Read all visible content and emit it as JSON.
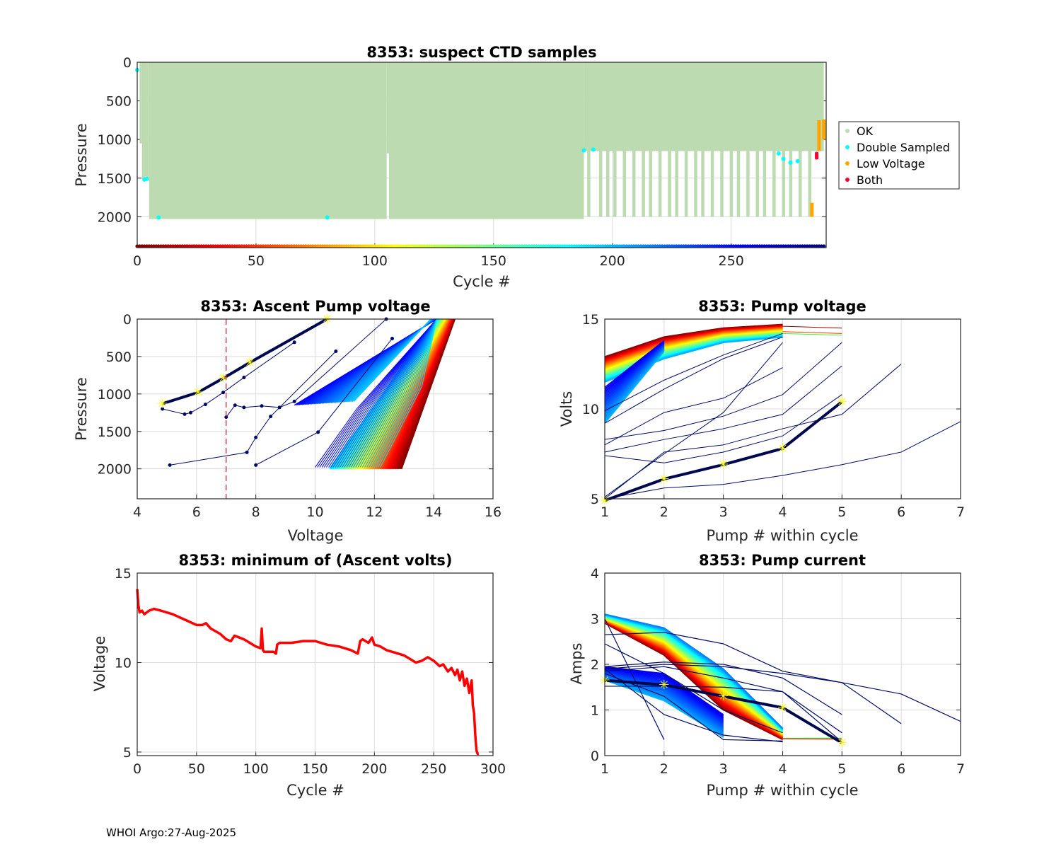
{
  "footer": "WHOI Argo:27-Aug-2025",
  "chart_data": [
    {
      "id": "suspect",
      "type": "scatter",
      "title": "8353: suspect CTD samples",
      "xlabel": "Cycle #",
      "ylabel": "Pressure",
      "xlim": [
        0,
        290
      ],
      "ylim": [
        2400,
        0
      ],
      "xticks": [
        0,
        50,
        100,
        150,
        200,
        250
      ],
      "yticks": [
        0,
        500,
        1000,
        1500,
        2000
      ],
      "grid": true,
      "legend": {
        "placement": "outside-right",
        "entries": [
          {
            "label": "OK",
            "color": "#bcdbb0"
          },
          {
            "label": "Double Sampled",
            "color": "#00ffff"
          },
          {
            "label": "Low Voltage",
            "color": "#ffa500"
          },
          {
            "label": "Both",
            "color": "#ff0033"
          }
        ]
      },
      "ok_profile_depth": [
        {
          "cycles": [
            0,
            1
          ],
          "max_p": 0
        },
        {
          "cycles": [
            1,
            2
          ],
          "max_p": 1050
        },
        {
          "cycles": [
            2,
            5
          ],
          "max_p": 1510
        },
        {
          "cycles": [
            5,
            105
          ],
          "max_p": 2030
        },
        {
          "cycles": [
            105,
            106
          ],
          "max_p": 1180
        },
        {
          "cycles": [
            106,
            188
          ],
          "max_p": 2030
        },
        {
          "cycles": [
            188,
            289
          ],
          "max_p": 1150
        }
      ],
      "deep_profiles_after_188": [
        190,
        195,
        198,
        201,
        205,
        209,
        213,
        216,
        220,
        224,
        227,
        231,
        235,
        238,
        242,
        246,
        250,
        253,
        257,
        261,
        264,
        268,
        272,
        275,
        279,
        283
      ],
      "deep_profile_pressure": 2000,
      "double_sampled": [
        {
          "cycle": 0,
          "p": 100
        },
        {
          "cycle": 3,
          "p": 1520
        },
        {
          "cycle": 4,
          "p": 1510
        },
        {
          "cycle": 9,
          "p": 2010
        },
        {
          "cycle": 80,
          "p": 2010
        },
        {
          "cycle": 188,
          "p": 1140
        },
        {
          "cycle": 192,
          "p": 1130
        },
        {
          "cycle": 270,
          "p": 1180
        },
        {
          "cycle": 272,
          "p": 1250
        },
        {
          "cycle": 275,
          "p": 1300
        },
        {
          "cycle": 278,
          "p": 1280
        }
      ],
      "low_voltage": [
        {
          "cycle": 284,
          "p_range": [
            1820,
            2000
          ]
        },
        {
          "cycle": 287,
          "p_range": [
            750,
            1150
          ]
        },
        {
          "cycle": 289,
          "p_range": [
            740,
            1000
          ]
        }
      ],
      "both": [
        {
          "cycle": 286,
          "p_range": [
            1160,
            1260
          ]
        }
      ],
      "cycle_colorbar_range": [
        0,
        289
      ]
    },
    {
      "id": "ascent",
      "type": "line",
      "title": "8353: Ascent Pump voltage",
      "xlabel": "Voltage",
      "ylabel": "Pressure",
      "xlim": [
        4,
        16
      ],
      "ylim": [
        2400,
        0
      ],
      "xticks": [
        4,
        6,
        8,
        10,
        12,
        14,
        16
      ],
      "yticks": [
        0,
        500,
        1000,
        1500,
        2000
      ],
      "grid": true,
      "threshold_line": {
        "x": 7,
        "color": "#e0102a",
        "style": "dashed"
      },
      "early_cycles_envelope": {
        "voltage_at_2000": [
          12.9,
          10.5
        ],
        "voltage_at_0": [
          14.7,
          14.1
        ]
      },
      "last_cycle_pumps": [
        {
          "v": 4.85,
          "p": 1130
        },
        {
          "v": 6.05,
          "p": 980
        },
        {
          "v": 6.9,
          "p": 790
        },
        {
          "v": 7.8,
          "p": 580
        },
        {
          "v": 10.4,
          "p": 0
        }
      ],
      "sample_late_cycles": [
        [
          [
            4.85,
            1200
          ],
          [
            5.6,
            1270
          ],
          [
            5.8,
            1250
          ],
          [
            6.3,
            1140
          ],
          [
            6.9,
            980
          ],
          [
            7.6,
            780
          ],
          [
            9.3,
            310
          ]
        ],
        [
          [
            5.1,
            1950
          ],
          [
            7.7,
            1780
          ],
          [
            8.0,
            1580
          ],
          [
            8.5,
            1300
          ],
          [
            10.7,
            430
          ]
        ],
        [
          [
            7.0,
            1310
          ],
          [
            7.3,
            1150
          ],
          [
            7.6,
            1180
          ],
          [
            8.2,
            1160
          ],
          [
            8.8,
            1180
          ],
          [
            9.3,
            1100
          ],
          [
            12.4,
            0
          ]
        ],
        [
          [
            8.0,
            1950
          ],
          [
            10.1,
            1510
          ],
          [
            12.6,
            260
          ]
        ]
      ]
    },
    {
      "id": "pumpvolt",
      "type": "line",
      "title": "8353: Pump voltage",
      "xlabel": "Pump # within cycle",
      "ylabel": "Volts",
      "xlim": [
        1,
        7
      ],
      "ylim": [
        5,
        15
      ],
      "xticks": [
        1,
        2,
        3,
        4,
        5,
        6,
        7
      ],
      "yticks": [
        5,
        10,
        15
      ],
      "grid": true,
      "early_band": {
        "pump1": [
          12.9,
          11.5
        ],
        "pump2": [
          14.0,
          12.8
        ],
        "pump3": [
          14.5,
          13.7
        ],
        "pump4": [
          14.7,
          14.0
        ]
      },
      "last_cycle": [
        4.9,
        6.1,
        6.9,
        7.8,
        10.4
      ],
      "sample_late_cycles": [
        [
          9.2,
          11.1,
          12.8,
          14.0
        ],
        [
          9.9,
          11.6,
          13.0,
          14.2
        ],
        [
          8.3,
          8.8,
          9.6,
          10.8,
          13.7
        ],
        [
          8.0,
          9.8,
          10.6,
          12.3
        ],
        [
          7.6,
          8.3,
          8.9,
          9.7,
          12.4
        ],
        [
          7.4,
          7.0,
          7.6,
          8.5,
          10.8
        ],
        [
          5.0,
          7.6,
          8.0,
          8.9,
          9.7,
          12.5
        ],
        [
          5.0,
          5.6,
          5.8,
          6.3,
          6.9,
          7.6,
          9.3
        ],
        [
          5.1,
          7.5,
          9.8,
          13.7
        ]
      ],
      "flat_tail": [
        [
          14.6,
          14.5
        ],
        [
          14.3,
          14.2
        ],
        [
          14.2,
          14.1
        ]
      ]
    },
    {
      "id": "minvolt",
      "type": "line",
      "title": "8353: minimum of (Ascent volts)",
      "xlabel": "Cycle #",
      "ylabel": "Voltage",
      "xlim": [
        0,
        300
      ],
      "ylim": [
        4.8,
        15
      ],
      "xticks": [
        0,
        50,
        100,
        150,
        200,
        250,
        300
      ],
      "yticks": [
        5,
        10,
        15
      ],
      "grid": true,
      "color": "#ff0000",
      "x": [
        0,
        1,
        2,
        4,
        6,
        8,
        10,
        14,
        20,
        30,
        40,
        50,
        55,
        58,
        62,
        70,
        75,
        79,
        82,
        86,
        90,
        100,
        104,
        105,
        106,
        107,
        110,
        115,
        117,
        118,
        120,
        130,
        140,
        150,
        160,
        170,
        180,
        186,
        188,
        190,
        195,
        198,
        200,
        205,
        210,
        215,
        220,
        225,
        230,
        235,
        240,
        245,
        250,
        255,
        258,
        262,
        265,
        268,
        270,
        272,
        274,
        276,
        278,
        280,
        282,
        283,
        284,
        285,
        286,
        287,
        288
      ],
      "y": [
        14.1,
        13.2,
        12.8,
        12.9,
        12.7,
        12.8,
        12.9,
        13.0,
        12.9,
        12.7,
        12.4,
        12.1,
        12.1,
        12.2,
        11.9,
        11.6,
        11.3,
        11.2,
        11.5,
        11.4,
        11.3,
        10.9,
        10.8,
        11.9,
        10.7,
        10.6,
        10.6,
        10.6,
        10.5,
        11.0,
        11.1,
        11.1,
        11.2,
        11.2,
        11.0,
        10.9,
        10.7,
        10.5,
        11.2,
        11.3,
        11.1,
        11.4,
        11.0,
        10.9,
        10.7,
        10.6,
        10.5,
        10.4,
        10.2,
        10.0,
        10.1,
        10.3,
        10.1,
        9.8,
        9.9,
        9.5,
        9.7,
        9.3,
        9.6,
        9.0,
        9.5,
        8.7,
        9.1,
        8.3,
        9.0,
        7.6,
        7.2,
        6.0,
        5.1,
        4.9,
        4.9
      ]
    },
    {
      "id": "pumpcurr",
      "type": "line",
      "title": "8353: Pump current",
      "xlabel": "Pump # within cycle",
      "ylabel": "Amps",
      "xlim": [
        1,
        7
      ],
      "ylim": [
        0,
        4
      ],
      "xticks": [
        1,
        2,
        3,
        4,
        5,
        6,
        7
      ],
      "yticks": [
        0,
        1,
        2,
        3,
        4
      ],
      "grid": true,
      "early_band": {
        "pump1": [
          3.1,
          2.9
        ],
        "pump2": [
          2.8,
          2.2
        ],
        "pump3": [
          1.9,
          1.0
        ],
        "pump4": [
          0.6,
          0.35
        ]
      },
      "last_cycle": [
        1.65,
        1.55,
        1.3,
        1.05,
        0.28
      ],
      "sample_late_cycles": [
        [
          2.65,
          2.7,
          2.45,
          1.85,
          1.6,
          1.35,
          0.75
        ],
        [
          1.9,
          2.0,
          1.95,
          1.8,
          1.6,
          0.7
        ],
        [
          1.95,
          2.05,
          2.0,
          1.7,
          0.9
        ],
        [
          1.85,
          1.95,
          1.7,
          1.4,
          0.5
        ],
        [
          1.52,
          1.52,
          1.5,
          1.4,
          0.3
        ],
        [
          2.45,
          1.8,
          1.0,
          0.5
        ],
        [
          3.0,
          0.35
        ],
        [
          1.9,
          0.9,
          0.45,
          0.3
        ],
        [
          1.8,
          1.3,
          0.35,
          0.32
        ]
      ],
      "flat_tail": [
        [
          0.38,
          0.38
        ],
        [
          0.37,
          0.36
        ]
      ]
    }
  ]
}
